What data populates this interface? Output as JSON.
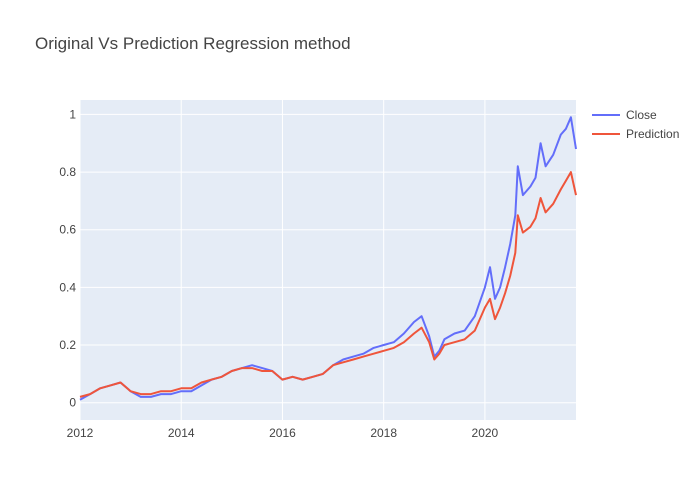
{
  "chart_data": {
    "type": "line",
    "title": "Original Vs Prediction Regression method",
    "xlabel": "",
    "ylabel": "",
    "x_ticks": [
      "2012",
      "2014",
      "2016",
      "2018",
      "2020"
    ],
    "y_ticks": [
      "0",
      "0.2",
      "0.4",
      "0.6",
      "0.8",
      "1"
    ],
    "xlim": [
      2012.0,
      2021.8
    ],
    "ylim": [
      -0.06,
      1.05
    ],
    "grid": true,
    "legend_position": "top-right",
    "background": "#e5ecf6",
    "series": [
      {
        "name": "Close",
        "color": "#636efa",
        "points": [
          [
            2012.0,
            0.01
          ],
          [
            2012.2,
            0.03
          ],
          [
            2012.4,
            0.05
          ],
          [
            2012.6,
            0.06
          ],
          [
            2012.8,
            0.07
          ],
          [
            2013.0,
            0.04
          ],
          [
            2013.2,
            0.02
          ],
          [
            2013.4,
            0.02
          ],
          [
            2013.6,
            0.03
          ],
          [
            2013.8,
            0.03
          ],
          [
            2014.0,
            0.04
          ],
          [
            2014.2,
            0.04
          ],
          [
            2014.4,
            0.06
          ],
          [
            2014.6,
            0.08
          ],
          [
            2014.8,
            0.09
          ],
          [
            2015.0,
            0.11
          ],
          [
            2015.2,
            0.12
          ],
          [
            2015.4,
            0.13
          ],
          [
            2015.6,
            0.12
          ],
          [
            2015.8,
            0.11
          ],
          [
            2016.0,
            0.08
          ],
          [
            2016.2,
            0.09
          ],
          [
            2016.4,
            0.08
          ],
          [
            2016.6,
            0.09
          ],
          [
            2016.8,
            0.1
          ],
          [
            2017.0,
            0.13
          ],
          [
            2017.2,
            0.15
          ],
          [
            2017.4,
            0.16
          ],
          [
            2017.6,
            0.17
          ],
          [
            2017.8,
            0.19
          ],
          [
            2018.0,
            0.2
          ],
          [
            2018.2,
            0.21
          ],
          [
            2018.4,
            0.24
          ],
          [
            2018.6,
            0.28
          ],
          [
            2018.75,
            0.3
          ],
          [
            2018.9,
            0.23
          ],
          [
            2019.0,
            0.16
          ],
          [
            2019.1,
            0.18
          ],
          [
            2019.2,
            0.22
          ],
          [
            2019.4,
            0.24
          ],
          [
            2019.6,
            0.25
          ],
          [
            2019.8,
            0.3
          ],
          [
            2020.0,
            0.4
          ],
          [
            2020.1,
            0.47
          ],
          [
            2020.2,
            0.36
          ],
          [
            2020.3,
            0.4
          ],
          [
            2020.4,
            0.47
          ],
          [
            2020.5,
            0.55
          ],
          [
            2020.6,
            0.65
          ],
          [
            2020.65,
            0.82
          ],
          [
            2020.75,
            0.72
          ],
          [
            2020.9,
            0.75
          ],
          [
            2021.0,
            0.78
          ],
          [
            2021.1,
            0.9
          ],
          [
            2021.2,
            0.82
          ],
          [
            2021.35,
            0.86
          ],
          [
            2021.5,
            0.93
          ],
          [
            2021.6,
            0.95
          ],
          [
            2021.7,
            0.99
          ],
          [
            2021.8,
            0.88
          ]
        ]
      },
      {
        "name": "Prediction",
        "color": "#ef553b",
        "points": [
          [
            2012.0,
            0.02
          ],
          [
            2012.2,
            0.03
          ],
          [
            2012.4,
            0.05
          ],
          [
            2012.6,
            0.06
          ],
          [
            2012.8,
            0.07
          ],
          [
            2013.0,
            0.04
          ],
          [
            2013.2,
            0.03
          ],
          [
            2013.4,
            0.03
          ],
          [
            2013.6,
            0.04
          ],
          [
            2013.8,
            0.04
          ],
          [
            2014.0,
            0.05
          ],
          [
            2014.2,
            0.05
          ],
          [
            2014.4,
            0.07
          ],
          [
            2014.6,
            0.08
          ],
          [
            2014.8,
            0.09
          ],
          [
            2015.0,
            0.11
          ],
          [
            2015.2,
            0.12
          ],
          [
            2015.4,
            0.12
          ],
          [
            2015.6,
            0.11
          ],
          [
            2015.8,
            0.11
          ],
          [
            2016.0,
            0.08
          ],
          [
            2016.2,
            0.09
          ],
          [
            2016.4,
            0.08
          ],
          [
            2016.6,
            0.09
          ],
          [
            2016.8,
            0.1
          ],
          [
            2017.0,
            0.13
          ],
          [
            2017.2,
            0.14
          ],
          [
            2017.4,
            0.15
          ],
          [
            2017.6,
            0.16
          ],
          [
            2017.8,
            0.17
          ],
          [
            2018.0,
            0.18
          ],
          [
            2018.2,
            0.19
          ],
          [
            2018.4,
            0.21
          ],
          [
            2018.6,
            0.24
          ],
          [
            2018.75,
            0.26
          ],
          [
            2018.9,
            0.21
          ],
          [
            2019.0,
            0.15
          ],
          [
            2019.1,
            0.17
          ],
          [
            2019.2,
            0.2
          ],
          [
            2019.4,
            0.21
          ],
          [
            2019.6,
            0.22
          ],
          [
            2019.8,
            0.25
          ],
          [
            2020.0,
            0.33
          ],
          [
            2020.1,
            0.36
          ],
          [
            2020.2,
            0.29
          ],
          [
            2020.3,
            0.33
          ],
          [
            2020.4,
            0.38
          ],
          [
            2020.5,
            0.44
          ],
          [
            2020.6,
            0.52
          ],
          [
            2020.65,
            0.65
          ],
          [
            2020.75,
            0.59
          ],
          [
            2020.9,
            0.61
          ],
          [
            2021.0,
            0.64
          ],
          [
            2021.1,
            0.71
          ],
          [
            2021.2,
            0.66
          ],
          [
            2021.35,
            0.69
          ],
          [
            2021.5,
            0.74
          ],
          [
            2021.6,
            0.77
          ],
          [
            2021.7,
            0.8
          ],
          [
            2021.8,
            0.72
          ]
        ]
      }
    ]
  }
}
